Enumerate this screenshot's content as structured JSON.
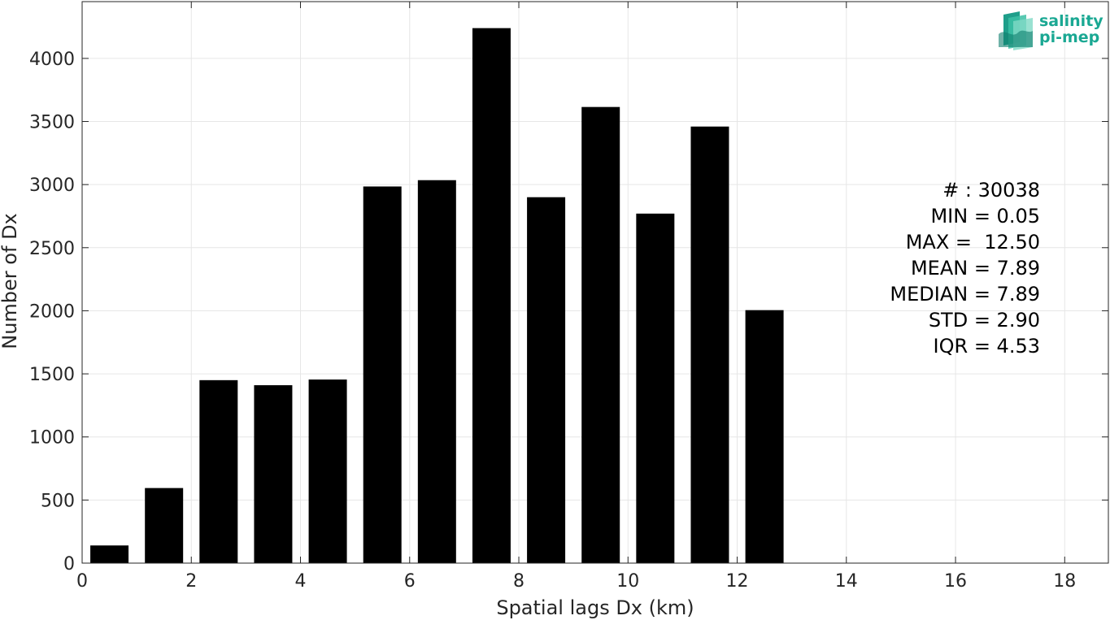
{
  "chart_data": {
    "type": "bar",
    "xlabel": "Spatial lags Dx (km)",
    "ylabel": "Number of Dx",
    "xlim": [
      0,
      18.8
    ],
    "ylim": [
      0,
      4450
    ],
    "xticks": [
      0,
      2,
      4,
      6,
      8,
      10,
      12,
      14,
      16,
      18
    ],
    "yticks": [
      0,
      500,
      1000,
      1500,
      2000,
      2500,
      3000,
      3500,
      4000
    ],
    "grid": true,
    "bar_centers": [
      0.5,
      1.5,
      2.5,
      3.5,
      4.5,
      5.5,
      6.5,
      7.5,
      8.5,
      9.5,
      10.5,
      11.5,
      12.5
    ],
    "bar_width": 0.7,
    "values": [
      140,
      595,
      1450,
      1410,
      1455,
      2985,
      3035,
      4240,
      2900,
      3615,
      2770,
      3460,
      2005
    ],
    "bar_color": "#000000"
  },
  "stats": [
    "# : 30038",
    "MIN = 0.05",
    "MAX =  12.50",
    "MEAN = 7.89",
    "MEDIAN = 7.89",
    "STD = 2.90",
    "IQR = 4.53"
  ],
  "logo": {
    "line1": "salinity",
    "line2": "pi-mep",
    "color": "#1aa893"
  }
}
